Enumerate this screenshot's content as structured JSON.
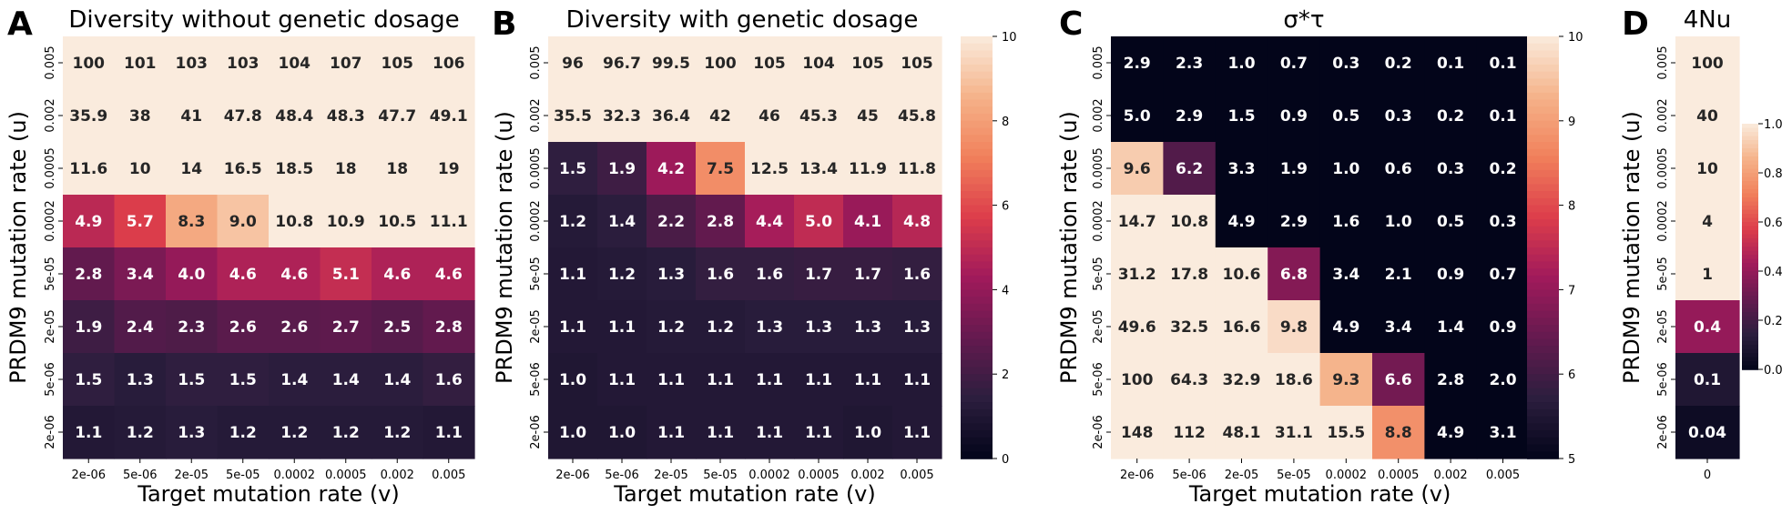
{
  "y_categories": [
    "0.005",
    "0.002",
    "0.0005",
    "0.0002",
    "5e-05",
    "2e-05",
    "5e-06",
    "2e-06"
  ],
  "x_categories": [
    "2e-06",
    "5e-06",
    "2e-05",
    "5e-05",
    "0.0002",
    "0.0005",
    "0.002",
    "0.005"
  ],
  "chart_data": [
    {
      "type": "heatmap",
      "panel_letter": "A",
      "title": "Diversity without genetic dosage",
      "xlabel": "Target mutation rate (v)",
      "ylabel": "PRDM9 mutation rate (u)",
      "x": [
        "2e-06",
        "5e-06",
        "2e-05",
        "5e-05",
        "0.0002",
        "0.0005",
        "0.002",
        "0.005"
      ],
      "y": [
        "0.005",
        "0.002",
        "0.0005",
        "0.0002",
        "5e-05",
        "2e-05",
        "5e-06",
        "2e-06"
      ],
      "values": [
        [
          100,
          101,
          103,
          103,
          104,
          107,
          105,
          106
        ],
        [
          35.9,
          38,
          41,
          47.8,
          48.4,
          48.3,
          47.7,
          49.1
        ],
        [
          11.6,
          10,
          14,
          16.5,
          18.5,
          18,
          18,
          19
        ],
        [
          4.9,
          5.7,
          8.3,
          9.0,
          10.8,
          10.9,
          10.5,
          11.1
        ],
        [
          2.8,
          3.4,
          4.0,
          4.6,
          4.6,
          5.1,
          4.6,
          4.6
        ],
        [
          1.9,
          2.4,
          2.3,
          2.6,
          2.6,
          2.7,
          2.5,
          2.8
        ],
        [
          1.5,
          1.3,
          1.5,
          1.5,
          1.4,
          1.4,
          1.4,
          1.6
        ],
        [
          1.1,
          1.2,
          1.3,
          1.2,
          1.2,
          1.2,
          1.2,
          1.1
        ]
      ],
      "labels": [
        [
          "100",
          "101",
          "103",
          "103",
          "104",
          "107",
          "105",
          "106"
        ],
        [
          "35.9",
          "38",
          "41",
          "47.8",
          "48.4",
          "48.3",
          "47.7",
          "49.1"
        ],
        [
          "11.6",
          "10",
          "14",
          "16.5",
          "18.5",
          "18",
          "18",
          "19"
        ],
        [
          "4.9",
          "5.7",
          "8.3",
          "9.0",
          "10.8",
          "10.9",
          "10.5",
          "11.1"
        ],
        [
          "2.8",
          "3.4",
          "4.0",
          "4.6",
          "4.6",
          "5.1",
          "4.6",
          "4.6"
        ],
        [
          "1.9",
          "2.4",
          "2.3",
          "2.6",
          "2.6",
          "2.7",
          "2.5",
          "2.8"
        ],
        [
          "1.5",
          "1.3",
          "1.5",
          "1.5",
          "1.4",
          "1.4",
          "1.4",
          "1.6"
        ],
        [
          "1.1",
          "1.2",
          "1.3",
          "1.2",
          "1.2",
          "1.2",
          "1.2",
          "1.1"
        ]
      ],
      "color_range": [
        0,
        10
      ],
      "colorbar": null
    },
    {
      "type": "heatmap",
      "panel_letter": "B",
      "title": "Diversity with genetic dosage",
      "xlabel": "Target mutation rate (v)",
      "ylabel": "PRDM9 mutation rate (u)",
      "x": [
        "2e-06",
        "5e-06",
        "2e-05",
        "5e-05",
        "0.0002",
        "0.0005",
        "0.002",
        "0.005"
      ],
      "y": [
        "0.005",
        "0.002",
        "0.0005",
        "0.0002",
        "5e-05",
        "2e-05",
        "5e-06",
        "2e-06"
      ],
      "values": [
        [
          96,
          96.7,
          99.5,
          100,
          105,
          104,
          105,
          105
        ],
        [
          35.5,
          32.3,
          36.4,
          42,
          46,
          45.3,
          45,
          45.8
        ],
        [
          1.5,
          1.9,
          4.2,
          7.5,
          12.5,
          13.4,
          11.9,
          11.8
        ],
        [
          1.2,
          1.4,
          2.2,
          2.8,
          4.4,
          5.0,
          4.1,
          4.8
        ],
        [
          1.1,
          1.2,
          1.3,
          1.6,
          1.6,
          1.7,
          1.7,
          1.6
        ],
        [
          1.1,
          1.1,
          1.2,
          1.2,
          1.3,
          1.3,
          1.3,
          1.3
        ],
        [
          1.0,
          1.1,
          1.1,
          1.1,
          1.1,
          1.1,
          1.1,
          1.1
        ],
        [
          1.0,
          1.0,
          1.1,
          1.1,
          1.1,
          1.1,
          1.0,
          1.1
        ]
      ],
      "labels": [
        [
          "96",
          "96.7",
          "99.5",
          "100",
          "105",
          "104",
          "105",
          "105"
        ],
        [
          "35.5",
          "32.3",
          "36.4",
          "42",
          "46",
          "45.3",
          "45",
          "45.8"
        ],
        [
          "1.5",
          "1.9",
          "4.2",
          "7.5",
          "12.5",
          "13.4",
          "11.9",
          "11.8"
        ],
        [
          "1.2",
          "1.4",
          "2.2",
          "2.8",
          "4.4",
          "5.0",
          "4.1",
          "4.8"
        ],
        [
          "1.1",
          "1.2",
          "1.3",
          "1.6",
          "1.6",
          "1.7",
          "1.7",
          "1.6"
        ],
        [
          "1.1",
          "1.1",
          "1.2",
          "1.2",
          "1.3",
          "1.3",
          "1.3",
          "1.3"
        ],
        [
          "1.0",
          "1.1",
          "1.1",
          "1.1",
          "1.1",
          "1.1",
          "1.1",
          "1.1"
        ],
        [
          "1.0",
          "1.0",
          "1.1",
          "1.1",
          "1.1",
          "1.1",
          "1.0",
          "1.1"
        ]
      ],
      "color_range": [
        0,
        10
      ],
      "colorbar": {
        "min": 0,
        "max": 10,
        "ticks": [
          "0",
          "2",
          "4",
          "6",
          "8",
          "10"
        ]
      }
    },
    {
      "type": "heatmap",
      "panel_letter": "C",
      "title": "σ*τ",
      "xlabel": "Target mutation rate (v)",
      "ylabel": "PRDM9 mutation rate (u)",
      "x": [
        "2e-06",
        "5e-06",
        "2e-05",
        "5e-05",
        "0.0002",
        "0.0005",
        "0.002",
        "0.005"
      ],
      "y": [
        "0.005",
        "0.002",
        "0.0005",
        "0.0002",
        "5e-05",
        "2e-05",
        "5e-06",
        "2e-06"
      ],
      "values": [
        [
          2.9,
          2.3,
          1.0,
          0.7,
          0.3,
          0.2,
          0.1,
          0.1
        ],
        [
          5.0,
          2.9,
          1.5,
          0.9,
          0.5,
          0.3,
          0.2,
          0.1
        ],
        [
          9.6,
          6.2,
          3.3,
          1.9,
          1.0,
          0.6,
          0.3,
          0.2
        ],
        [
          14.7,
          10.8,
          4.9,
          2.9,
          1.6,
          1.0,
          0.5,
          0.3
        ],
        [
          31.2,
          17.8,
          10.6,
          6.8,
          3.4,
          2.1,
          0.9,
          0.7
        ],
        [
          49.6,
          32.5,
          16.6,
          9.8,
          4.9,
          3.4,
          1.4,
          0.9
        ],
        [
          100,
          64.3,
          32.9,
          18.6,
          9.3,
          6.6,
          2.8,
          2.0
        ],
        [
          148,
          112,
          48.1,
          31.1,
          15.5,
          8.8,
          4.9,
          3.1
        ]
      ],
      "labels": [
        [
          "2.9",
          "2.3",
          "1.0",
          "0.7",
          "0.3",
          "0.2",
          "0.1",
          "0.1"
        ],
        [
          "5.0",
          "2.9",
          "1.5",
          "0.9",
          "0.5",
          "0.3",
          "0.2",
          "0.1"
        ],
        [
          "9.6",
          "6.2",
          "3.3",
          "1.9",
          "1.0",
          "0.6",
          "0.3",
          "0.2"
        ],
        [
          "14.7",
          "10.8",
          "4.9",
          "2.9",
          "1.6",
          "1.0",
          "0.5",
          "0.3"
        ],
        [
          "31.2",
          "17.8",
          "10.6",
          "6.8",
          "3.4",
          "2.1",
          "0.9",
          "0.7"
        ],
        [
          "49.6",
          "32.5",
          "16.6",
          "9.8",
          "4.9",
          "3.4",
          "1.4",
          "0.9"
        ],
        [
          "100",
          "64.3",
          "32.9",
          "18.6",
          "9.3",
          "6.6",
          "2.8",
          "2.0"
        ],
        [
          "148",
          "112",
          "48.1",
          "31.1",
          "15.5",
          "8.8",
          "4.9",
          "3.1"
        ]
      ],
      "color_range": [
        5,
        10
      ],
      "colorbar": {
        "min": 5,
        "max": 10,
        "ticks": [
          "5",
          "6",
          "7",
          "8",
          "9",
          "10"
        ]
      }
    },
    {
      "type": "heatmap",
      "panel_letter": "D",
      "title": "4Nu",
      "xlabel": "",
      "ylabel": "PRDM9 mutation rate (u)",
      "x": [
        "0"
      ],
      "y": [
        "0.005",
        "0.002",
        "0.0005",
        "0.0002",
        "5e-05",
        "2e-05",
        "5e-06",
        "2e-06"
      ],
      "values": [
        [
          100
        ],
        [
          40
        ],
        [
          10
        ],
        [
          4
        ],
        [
          1
        ],
        [
          0.4
        ],
        [
          0.1
        ],
        [
          0.04
        ]
      ],
      "labels": [
        [
          "100"
        ],
        [
          "40"
        ],
        [
          "10"
        ],
        [
          "4"
        ],
        [
          "1"
        ],
        [
          "0.4"
        ],
        [
          "0.1"
        ],
        [
          "0.04"
        ]
      ],
      "color_range": [
        0,
        1
      ],
      "colorbar": {
        "min": 0,
        "max": 1,
        "ticks": [
          "0.0",
          "0.2",
          "0.4",
          "0.6",
          "0.8",
          "1.0"
        ]
      }
    }
  ],
  "colormap": {
    "name": "rocket",
    "stops": [
      "#03051a",
      "#2c1e3e",
      "#641a4f",
      "#a11a5b",
      "#dc3d4b",
      "#f1805b",
      "#f5b38a",
      "#faebdd"
    ]
  }
}
